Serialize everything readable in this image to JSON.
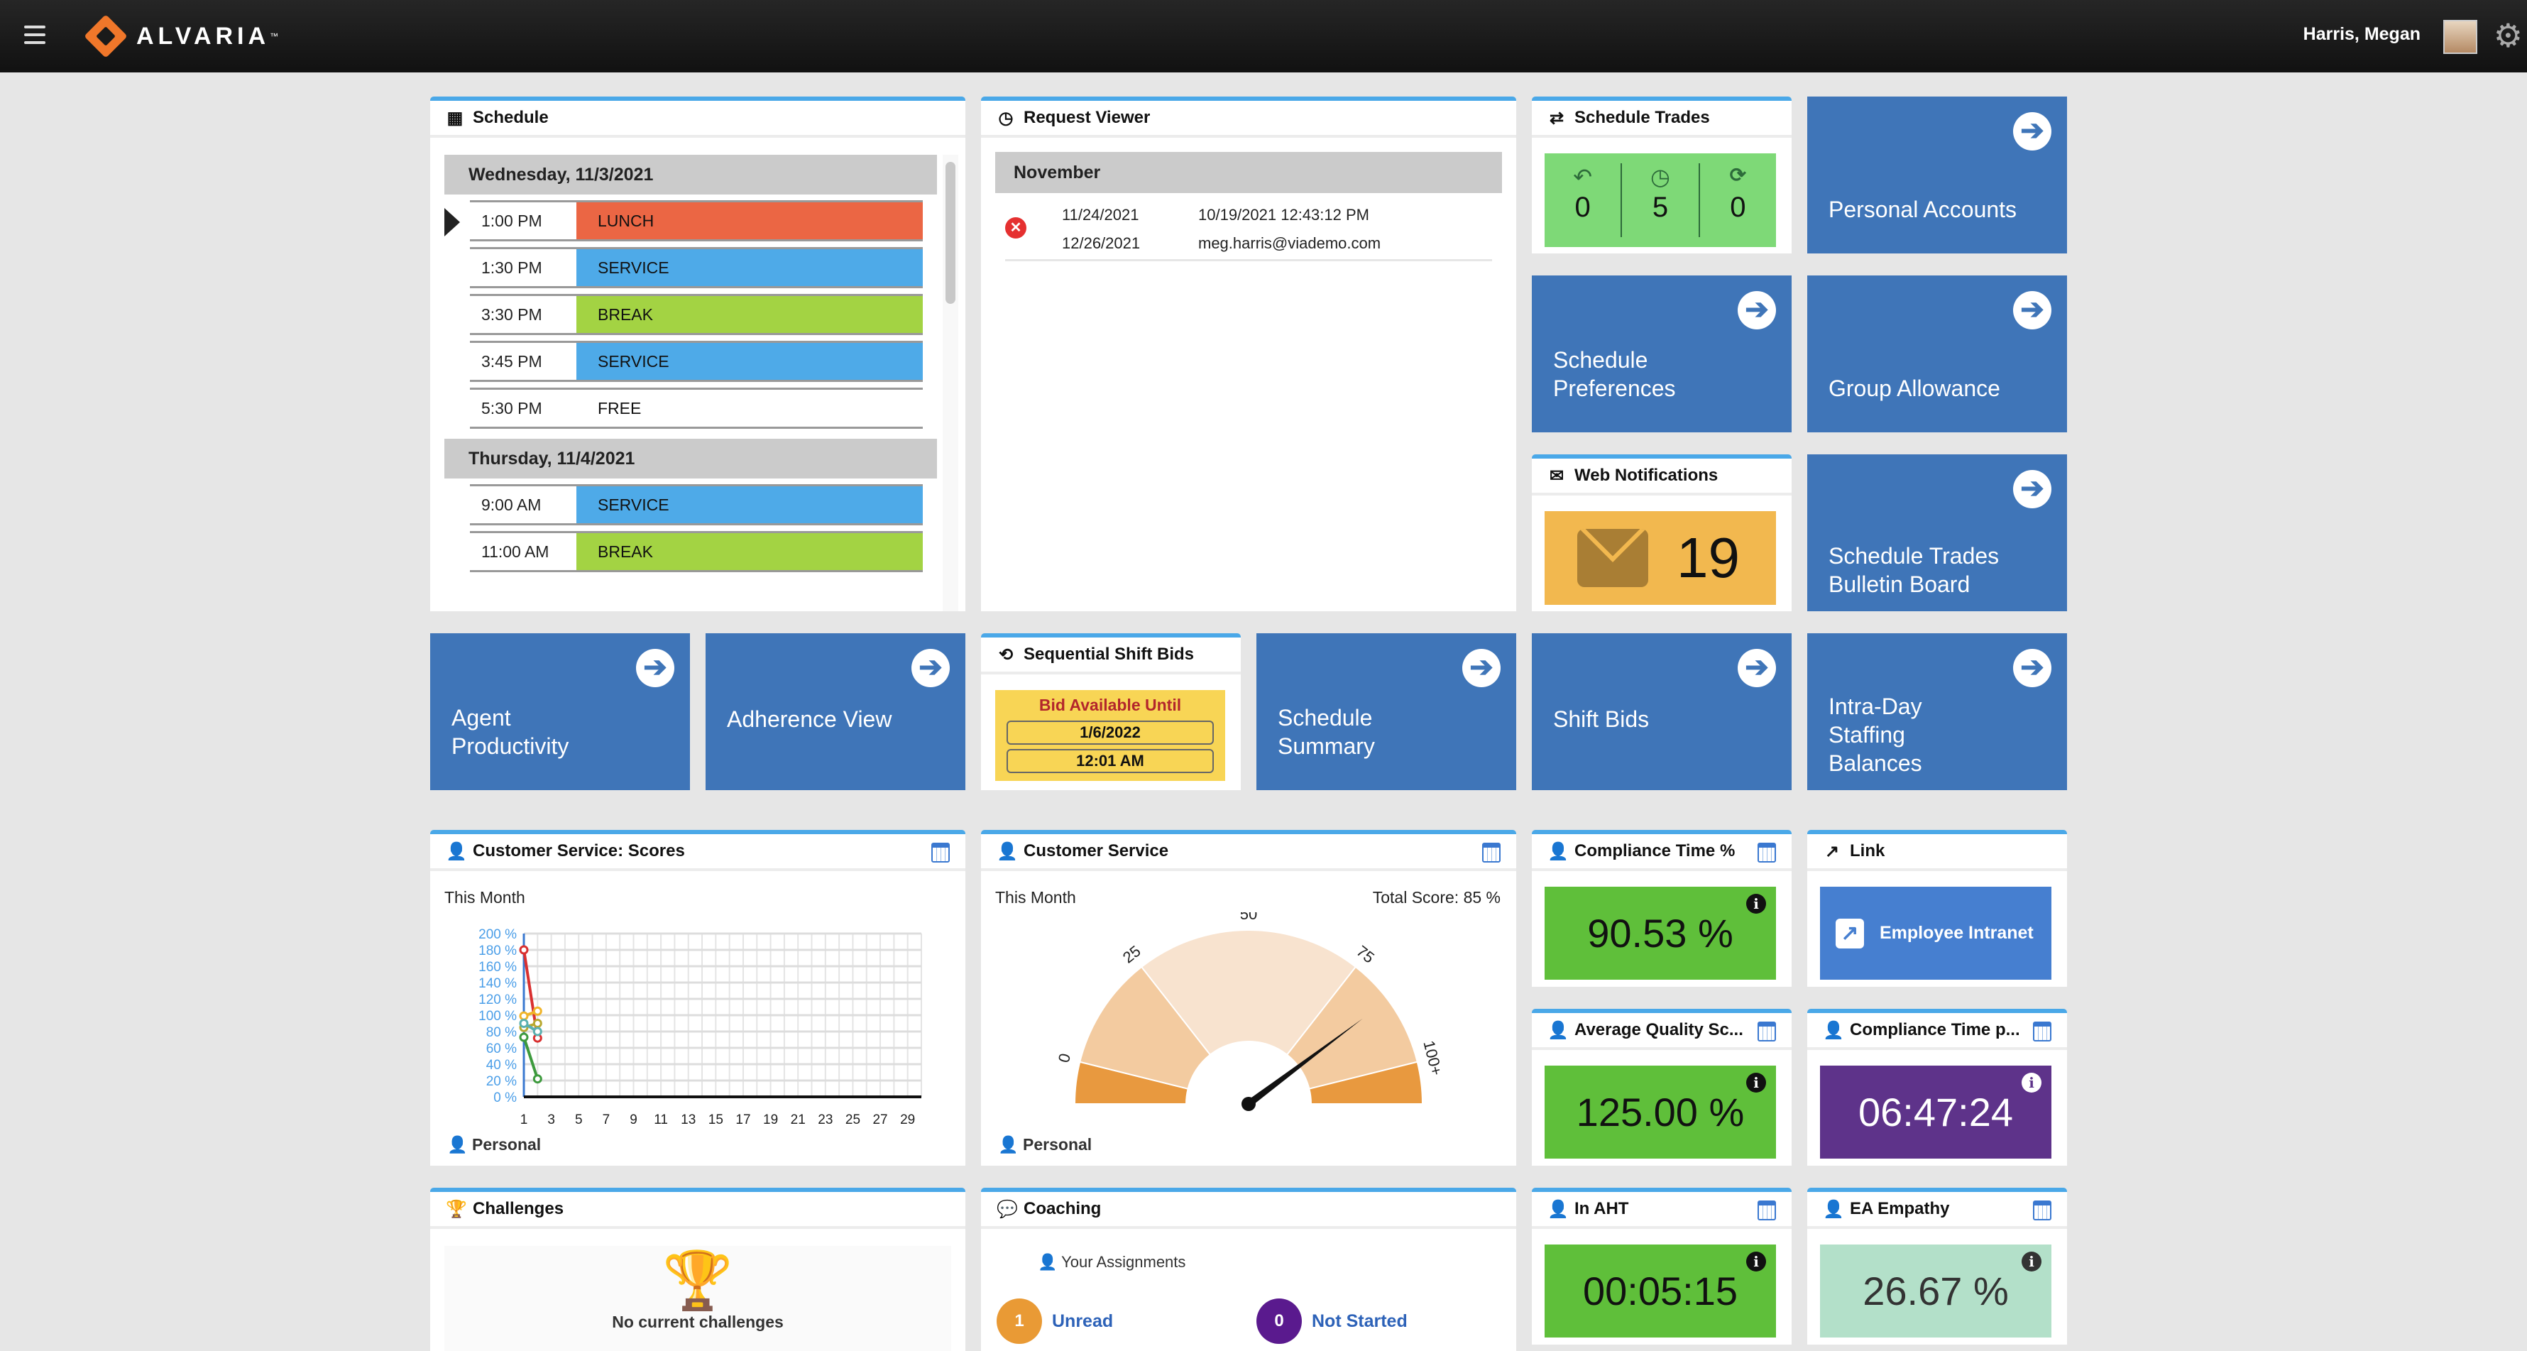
{
  "header": {
    "logo_text": "ALVARIA",
    "logo_tm": "™",
    "user_name": "Harris, Megan",
    "menu_icon": "hamburger-icon",
    "settings_icon": "gear-icon"
  },
  "schedule": {
    "title": "Schedule",
    "days": [
      {
        "label": "Wednesday, 11/3/2021",
        "items": [
          {
            "time": "1:00 PM",
            "activity": "LUNCH",
            "color": "#eb6644",
            "current": true
          },
          {
            "time": "1:30 PM",
            "activity": "SERVICE",
            "color": "#4eaae8"
          },
          {
            "time": "3:30 PM",
            "activity": "BREAK",
            "color": "#a3d343"
          },
          {
            "time": "3:45 PM",
            "activity": "SERVICE",
            "color": "#4eaae8"
          },
          {
            "time": "5:30 PM",
            "activity": "FREE",
            "color": ""
          }
        ]
      },
      {
        "label": "Thursday, 11/4/2021",
        "items": [
          {
            "time": "9:00 AM",
            "activity": "SERVICE",
            "color": "#4eaae8"
          },
          {
            "time": "11:00 AM",
            "activity": "BREAK",
            "color": "#a3d343"
          }
        ]
      }
    ]
  },
  "request_viewer": {
    "title": "Request Viewer",
    "month": "November",
    "items": [
      {
        "start": "11/24/2021",
        "end": "12/26/2021",
        "submitted": "10/19/2021 12:43:12 PM",
        "email": "meg.harris@viademo.com",
        "status": "denied"
      }
    ]
  },
  "schedule_trades": {
    "title": "Schedule Trades",
    "counts": {
      "returned": "0",
      "pending": "5",
      "expiring": "0"
    }
  },
  "web_notifications": {
    "title": "Web Notifications",
    "count": "19"
  },
  "tiles": {
    "personal_accounts": "Personal Accounts",
    "schedule_preferences": "Schedule Preferences",
    "group_allowance": "Group Allowance",
    "bulletin_board": "Schedule Trades Bulletin Board",
    "agent_productivity": "Agent Productivity",
    "adherence_view": "Adherence View",
    "schedule_summary": "Schedule Summary",
    "shift_bids": "Shift Bids",
    "intra_day": "Intra-Day Staffing Balances"
  },
  "shift_bids": {
    "title": "Sequential Shift Bids",
    "label": "Bid Available Until",
    "date": "1/6/2022",
    "time": "12:01 AM"
  },
  "cs_scores": {
    "title": "Customer Service: Scores",
    "period": "This Month",
    "footer": "Personal"
  },
  "cs_gauge": {
    "title": "Customer Service",
    "period": "This Month",
    "total": "Total Score: 85 %",
    "footer": "Personal"
  },
  "kpis": {
    "compliance_pct": {
      "title": "Compliance Time %",
      "value": "90.53 %"
    },
    "avg_quality": {
      "title": "Average Quality Sc...",
      "value": "125.00 %"
    },
    "in_aht": {
      "title": "In AHT",
      "value": "00:05:15"
    },
    "compliance_time": {
      "title": "Compliance Time p...",
      "value": "06:47:24"
    },
    "ea_empathy": {
      "title": "EA Empathy",
      "value": "26.67 %"
    }
  },
  "link": {
    "title": "Link",
    "label": "Employee Intranet"
  },
  "challenges": {
    "title": "Challenges",
    "empty": "No current challenges"
  },
  "coaching": {
    "title": "Coaching",
    "subtitle": "Your Assignments",
    "unread_count": "1",
    "unread_label": "Unread",
    "not_started_count": "0",
    "not_started_label": "Not Started"
  },
  "chart_data": [
    {
      "type": "line",
      "title": "Customer Service: Scores",
      "xlabel": "",
      "ylabel": "",
      "xlim": [
        1,
        30
      ],
      "ylim": [
        0,
        200
      ],
      "x_ticks": [
        "1",
        "3",
        "5",
        "7",
        "9",
        "11",
        "13",
        "15",
        "17",
        "19",
        "21",
        "23",
        "25",
        "27",
        "29"
      ],
      "y_ticks": [
        "0 %",
        "20 %",
        "40 %",
        "60 %",
        "80 %",
        "100 %",
        "120 %",
        "140 %",
        "160 %",
        "180 %",
        "200 %"
      ],
      "grid": true,
      "x": [
        1,
        2
      ],
      "series": [
        {
          "color": "#d93030",
          "values": [
            180,
            72
          ]
        },
        {
          "color": "#f0b429",
          "values": [
            99,
            105
          ]
        },
        {
          "color": "#b8a830",
          "values": [
            85,
            90
          ]
        },
        {
          "color": "#5ab0b0",
          "values": [
            90,
            80
          ]
        },
        {
          "color": "#3d9a3d",
          "values": [
            73,
            22
          ]
        }
      ]
    },
    {
      "type": "gauge",
      "title": "Customer Service",
      "value": 85,
      "range": [
        0,
        100
      ],
      "tick_labels": [
        "0",
        "25",
        "50",
        "75",
        "100+"
      ],
      "tick_values": [
        0,
        25,
        50,
        75,
        100
      ],
      "bands": [
        {
          "from": -15,
          "to": 0,
          "color": "#e8993f"
        },
        {
          "from": 0,
          "to": 25,
          "color": "#f3cba0"
        },
        {
          "from": 25,
          "to": 75,
          "color": "#f8e3cf"
        },
        {
          "from": 75,
          "to": 100,
          "color": "#f3cba0"
        },
        {
          "from": 100,
          "to": 115,
          "color": "#e8993f"
        }
      ]
    }
  ]
}
